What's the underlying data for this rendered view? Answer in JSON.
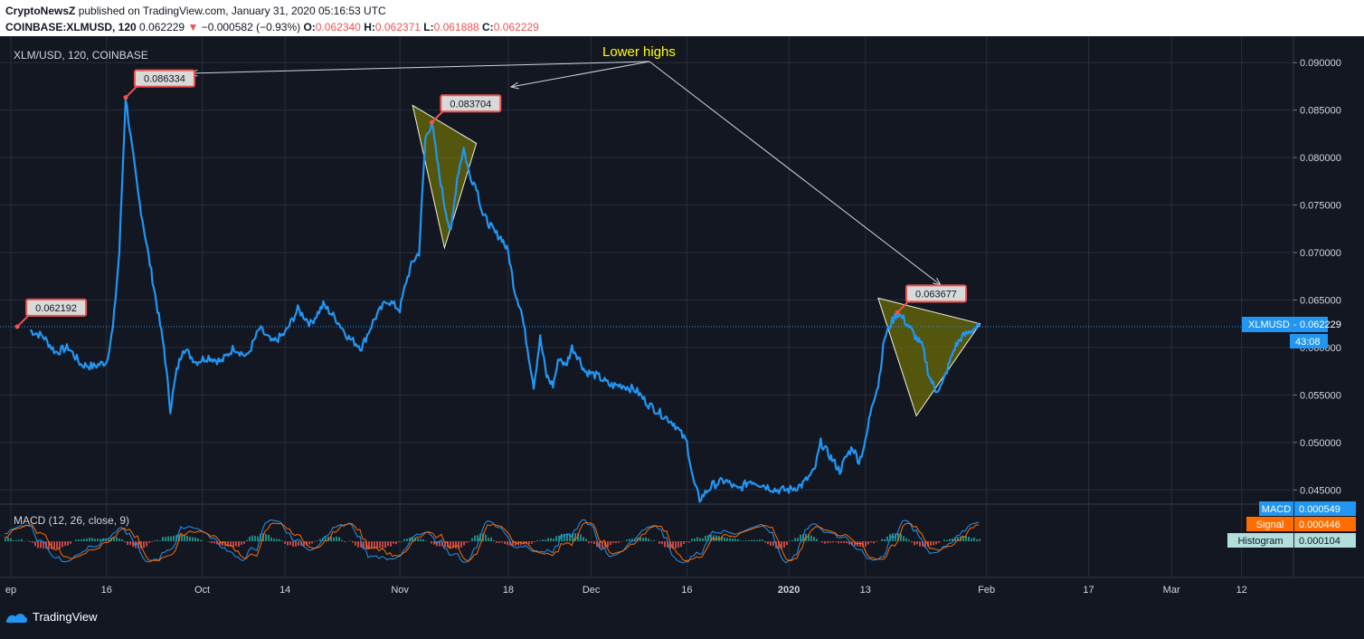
{
  "header": {
    "line1_author": "CryptoNewsZ",
    "line1_rest": "published on TradingView.com, January 31, 2020 05:16:53 UTC",
    "symbol": "COINBASE:XLMUSD, 120",
    "price": "0.062229",
    "change_arrow": "▼",
    "change": "−0.000582 (−0.93%)",
    "o_label": "O:",
    "o_val": "0.062340",
    "h_label": "H:",
    "h_val": "0.062371",
    "l_label": "L:",
    "l_val": "0.061888",
    "c_label": "C:",
    "c_val": "0.062229"
  },
  "chart_title": "XLM/USD, 120, COINBASE",
  "annotation_text": "Lower highs",
  "price_tag": {
    "symbol": "XLMUSD",
    "value": "0.062229",
    "countdown": "43:08"
  },
  "macd": {
    "title": "MACD (12, 26, close, 9)",
    "tags": [
      {
        "label": "MACD",
        "value": "0.000549",
        "color": "#2196f3"
      },
      {
        "label": "Signal",
        "value": "0.000446",
        "color": "#ff6d00"
      },
      {
        "label": "Histogram",
        "value": "0.000104",
        "color": "#b2dfdb"
      }
    ]
  },
  "footer": {
    "brand": "TradingView"
  },
  "colors": {
    "background": "#131722",
    "line": "#2196f3",
    "triangle": "#808000",
    "label_border": "#ef5350",
    "annotation": "#ffff00"
  },
  "chart_data": {
    "type": "line",
    "series": [
      {
        "name": "XLM/USD",
        "points": [
          [
            "2019-09-04",
            0.0618
          ],
          [
            "2019-09-06",
            0.0612
          ],
          [
            "2019-09-08",
            0.0595
          ],
          [
            "2019-09-10",
            0.06
          ],
          [
            "2019-09-12",
            0.0582
          ],
          [
            "2019-09-14",
            0.058
          ],
          [
            "2019-09-16",
            0.0585
          ],
          [
            "2019-09-17",
            0.062
          ],
          [
            "2019-09-18",
            0.07
          ],
          [
            "2019-09-19",
            0.0863
          ],
          [
            "2019-09-20",
            0.081
          ],
          [
            "2019-09-21",
            0.076
          ],
          [
            "2019-09-22",
            0.072
          ],
          [
            "2019-09-23",
            0.068
          ],
          [
            "2019-09-24",
            0.064
          ],
          [
            "2019-09-25",
            0.06
          ],
          [
            "2019-09-26",
            0.0535
          ],
          [
            "2019-09-27",
            0.0575
          ],
          [
            "2019-09-28",
            0.06
          ],
          [
            "2019-09-30",
            0.0585
          ],
          [
            "2019-10-02",
            0.059
          ],
          [
            "2019-10-04",
            0.0585
          ],
          [
            "2019-10-06",
            0.06
          ],
          [
            "2019-10-08",
            0.059
          ],
          [
            "2019-10-10",
            0.062
          ],
          [
            "2019-10-12",
            0.0605
          ],
          [
            "2019-10-14",
            0.0615
          ],
          [
            "2019-10-16",
            0.064
          ],
          [
            "2019-10-18",
            0.0625
          ],
          [
            "2019-10-20",
            0.0645
          ],
          [
            "2019-10-22",
            0.063
          ],
          [
            "2019-10-24",
            0.061
          ],
          [
            "2019-10-26",
            0.06
          ],
          [
            "2019-10-28",
            0.063
          ],
          [
            "2019-10-30",
            0.065
          ],
          [
            "2019-11-01",
            0.064
          ],
          [
            "2019-11-02",
            0.067
          ],
          [
            "2019-11-03",
            0.069
          ],
          [
            "2019-11-04",
            0.07
          ],
          [
            "2019-11-05",
            0.082
          ],
          [
            "2019-11-06",
            0.0837
          ],
          [
            "2019-11-07",
            0.079
          ],
          [
            "2019-11-08",
            0.075
          ],
          [
            "2019-11-09",
            0.072
          ],
          [
            "2019-11-10",
            0.078
          ],
          [
            "2019-11-11",
            0.081
          ],
          [
            "2019-11-12",
            0.078
          ],
          [
            "2019-11-13",
            0.077
          ],
          [
            "2019-11-14",
            0.074
          ],
          [
            "2019-11-15",
            0.073
          ],
          [
            "2019-11-16",
            0.072
          ],
          [
            "2019-11-17",
            0.0715
          ],
          [
            "2019-11-18",
            0.07
          ],
          [
            "2019-11-19",
            0.066
          ],
          [
            "2019-11-20",
            0.064
          ],
          [
            "2019-11-21",
            0.06
          ],
          [
            "2019-11-22",
            0.056
          ],
          [
            "2019-11-23",
            0.061
          ],
          [
            "2019-11-24",
            0.057
          ],
          [
            "2019-11-25",
            0.056
          ],
          [
            "2019-11-26",
            0.059
          ],
          [
            "2019-11-27",
            0.058
          ],
          [
            "2019-11-28",
            0.06
          ],
          [
            "2019-11-29",
            0.059
          ],
          [
            "2019-11-30",
            0.0575
          ],
          [
            "2019-12-02",
            0.057
          ],
          [
            "2019-12-04",
            0.056
          ],
          [
            "2019-12-06",
            0.056
          ],
          [
            "2019-12-08",
            0.0555
          ],
          [
            "2019-12-10",
            0.054
          ],
          [
            "2019-12-12",
            0.053
          ],
          [
            "2019-12-14",
            0.052
          ],
          [
            "2019-12-16",
            0.05
          ],
          [
            "2019-12-17",
            0.046
          ],
          [
            "2019-12-18",
            0.044
          ],
          [
            "2019-12-20",
            0.0455
          ],
          [
            "2019-12-22",
            0.046
          ],
          [
            "2019-12-24",
            0.045
          ],
          [
            "2019-12-26",
            0.046
          ],
          [
            "2019-12-28",
            0.0455
          ],
          [
            "2019-12-30",
            0.045
          ],
          [
            "2020-01-01",
            0.045
          ],
          [
            "2020-01-03",
            0.0455
          ],
          [
            "2020-01-05",
            0.047
          ],
          [
            "2020-01-06",
            0.05
          ],
          [
            "2020-01-07",
            0.049
          ],
          [
            "2020-01-08",
            0.048
          ],
          [
            "2020-01-09",
            0.047
          ],
          [
            "2020-01-10",
            0.0485
          ],
          [
            "2020-01-11",
            0.0495
          ],
          [
            "2020-01-12",
            0.048
          ],
          [
            "2020-01-13",
            0.05
          ],
          [
            "2020-01-14",
            0.054
          ],
          [
            "2020-01-15",
            0.056
          ],
          [
            "2020-01-16",
            0.061
          ],
          [
            "2020-01-17",
            0.0625
          ],
          [
            "2020-01-18",
            0.0637
          ],
          [
            "2020-01-19",
            0.063
          ],
          [
            "2020-01-20",
            0.062
          ],
          [
            "2020-01-21",
            0.061
          ],
          [
            "2020-01-22",
            0.06
          ],
          [
            "2020-01-23",
            0.057
          ],
          [
            "2020-01-24",
            0.0555
          ],
          [
            "2020-01-25",
            0.056
          ],
          [
            "2020-01-26",
            0.058
          ],
          [
            "2020-01-27",
            0.06
          ],
          [
            "2020-01-28",
            0.061
          ],
          [
            "2020-01-29",
            0.0615
          ],
          [
            "2020-01-30",
            0.062
          ],
          [
            "2020-01-31",
            0.0622
          ]
        ]
      }
    ],
    "y_ticks": [
      "0.090000",
      "0.085000",
      "0.080000",
      "0.075000",
      "0.070000",
      "0.065000",
      "0.060000",
      "0.055000",
      "0.050000",
      "0.045000"
    ],
    "ylim": [
      0.0435,
      0.0925
    ],
    "x_ticks": [
      "ep",
      "16",
      "Oct",
      "14",
      "Nov",
      "18",
      "Dec",
      "16",
      "2020",
      "13",
      "Feb",
      "17",
      "Mar",
      "12"
    ],
    "grid": true,
    "price_labels": [
      {
        "date": "2019-09-02",
        "value": "0.062192"
      },
      {
        "date": "2019-09-19",
        "value": "0.086334"
      },
      {
        "date": "2019-11-06",
        "value": "0.083704"
      },
      {
        "date": "2020-01-18",
        "value": "0.063677"
      }
    ]
  }
}
